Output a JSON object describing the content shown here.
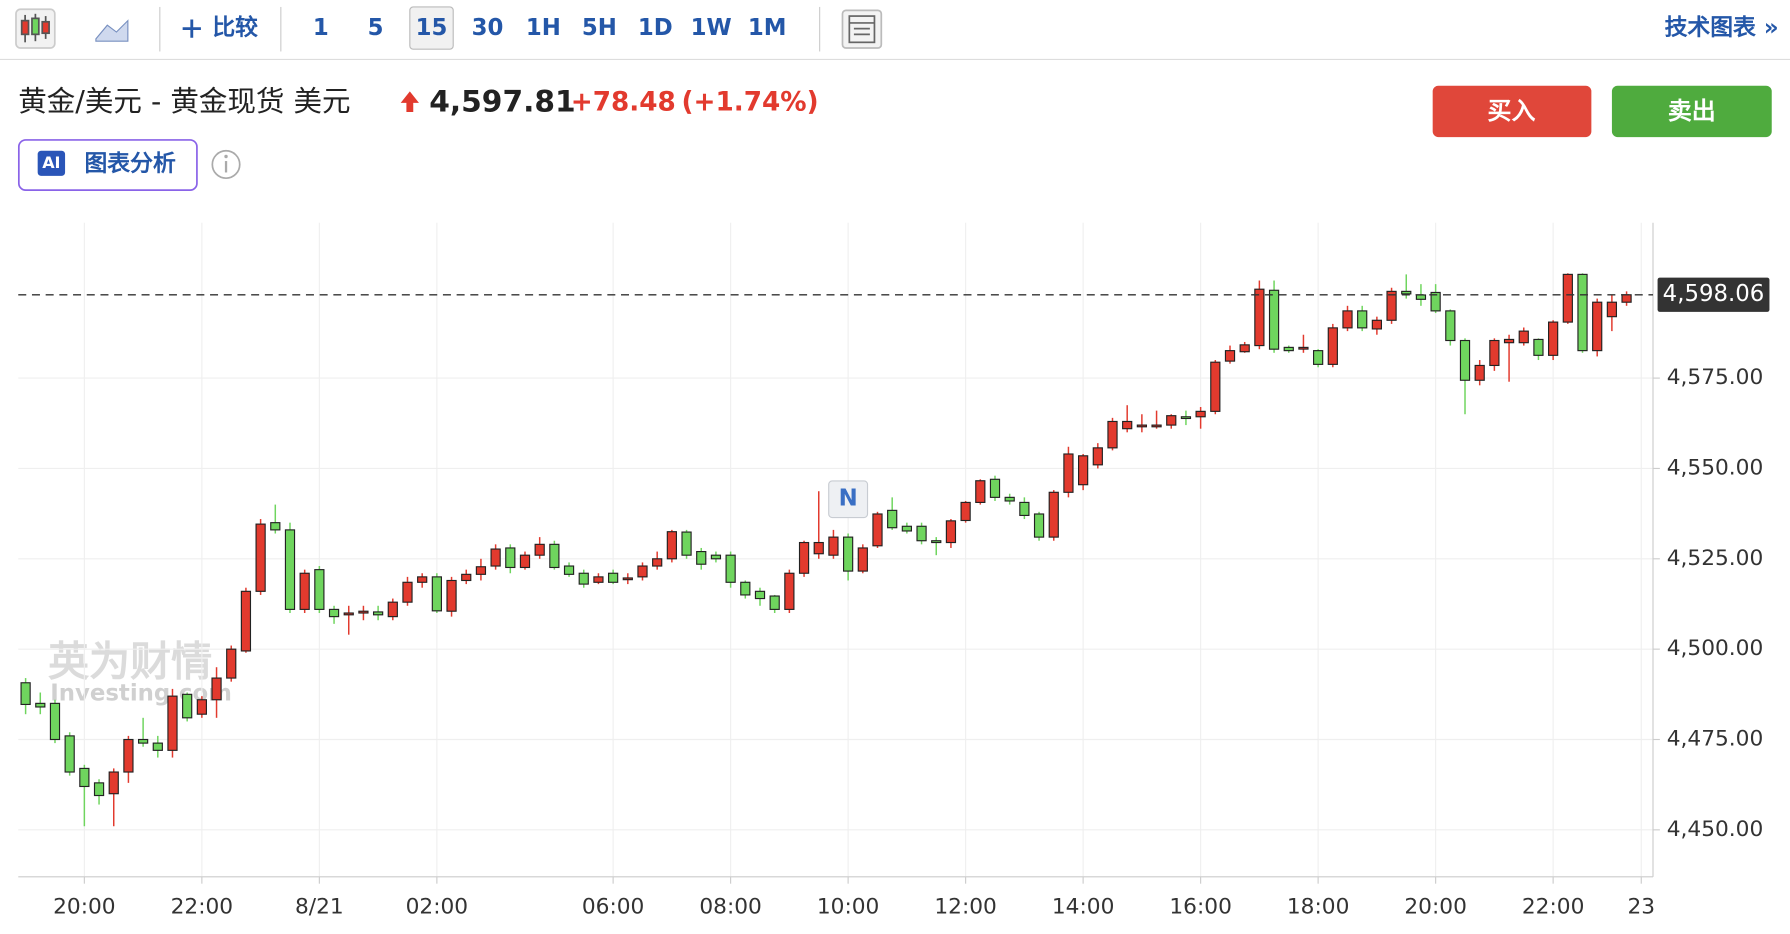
{
  "toolbar": {
    "compare": "比较",
    "intervals": [
      "1",
      "5",
      "15",
      "30",
      "1H",
      "5H",
      "1D",
      "1W",
      "1M"
    ],
    "technical_chart": "技术图表 »"
  },
  "header": {
    "instrument": "黄金/美元 - 黄金现货 美元",
    "price": "4,597.81",
    "change": "+78.48",
    "change_pct": "(+1.74%)",
    "buy": "买入",
    "sell": "卖出",
    "ai_badge": "AI",
    "ai_label": "图表分析"
  },
  "watermark": {
    "cn": "英为财情",
    "en": "Investing.com"
  },
  "chart_data": {
    "type": "candlestick",
    "open": [
      4490.7,
      4485,
      4485,
      4476,
      4467,
      4463,
      4460,
      4466,
      4475,
      4474,
      4472,
      4487.5,
      4482,
      4486,
      4492,
      4499.5,
      4516,
      4535,
      4533,
      4511,
      4522,
      4511,
      4509.5,
      4510,
      4510.3,
      4509,
      4513,
      4518.5,
      4520,
      4510.5,
      4519,
      4520.7,
      4523,
      4528,
      4522.6,
      4526,
      4529,
      4523,
      4521,
      4518.5,
      4521,
      4519.5,
      4520,
      4523,
      4525,
      4532.4,
      4527,
      4526,
      4526,
      4518.5,
      4516,
      4514.7,
      4511,
      4521,
      4526.4,
      4526,
      4531,
      4521.6,
      4528.6,
      4538.4,
      4534,
      4534,
      4530,
      4529.5,
      4535.6,
      4540.6,
      4547,
      4542,
      4540.6,
      4537.4,
      4531,
      4543.4,
      4545.5,
      4551,
      4555.7,
      4561,
      4562,
      4562,
      4562,
      4564.3,
      4564.3,
      4565.8,
      4579.7,
      4582.3,
      4584,
      4599.3,
      4583.5,
      4583.5,
      4582.6,
      4578.8,
      4588.9,
      4593.6,
      4588.6,
      4591,
      4599,
      4598,
      4598.7,
      4593.6,
      4585.4,
      4574.4,
      4578.5,
      4584.8,
      4584.8,
      4585.7,
      4581.3,
      4590.5,
      4603.7,
      4582.6,
      4592,
      4596
    ],
    "high": [
      4492,
      4488,
      4486,
      4477,
      4468,
      4464,
      4467,
      4476,
      4481,
      4476,
      4489,
      4488,
      4487,
      4495,
      4501,
      4517,
      4536,
      4540,
      4535,
      4522,
      4523,
      4512,
      4512,
      4512,
      4512,
      4514,
      4520,
      4521,
      4521,
      4520,
      4522,
      4525,
      4529,
      4529,
      4527,
      4531,
      4530,
      4524,
      4522,
      4521,
      4522,
      4521,
      4524,
      4527,
      4533,
      4533,
      4528,
      4527,
      4527,
      4519,
      4517,
      4515,
      4522,
      4530,
      4543.7,
      4533,
      4532,
      4529,
      4538,
      4542,
      4535,
      4535,
      4531,
      4536,
      4541,
      4547,
      4548,
      4543,
      4542,
      4538,
      4544,
      4556,
      4554,
      4557,
      4564,
      4567.5,
      4565,
      4566,
      4565,
      4566,
      4567,
      4580,
      4584,
      4585,
      4602,
      4602,
      4584,
      4587,
      4583,
      4590,
      4595,
      4595,
      4592,
      4600,
      4603.7,
      4601,
      4601,
      4594,
      4586,
      4580,
      4586,
      4587,
      4589,
      4586,
      4591,
      4604,
      4604,
      4597,
      4598,
      4599
    ],
    "low": [
      4482,
      4482,
      4474,
      4465,
      4451,
      4457,
      4451,
      4463,
      4473,
      4470,
      4470,
      4480,
      4481,
      4481,
      4491,
      4499,
      4515,
      4532,
      4510,
      4510,
      4510,
      4507,
      4504,
      4508,
      4508,
      4508,
      4512,
      4517,
      4510,
      4509,
      4518,
      4519,
      4522,
      4521,
      4522,
      4525,
      4522,
      4520,
      4517,
      4518,
      4518,
      4518,
      4519,
      4522,
      4524,
      4525,
      4522,
      4524,
      4517,
      4514,
      4512,
      4510,
      4510,
      4520,
      4525,
      4525,
      4519,
      4521,
      4528,
      4533,
      4532,
      4529,
      4526,
      4528,
      4535,
      4540,
      4541,
      4540,
      4536,
      4530,
      4530,
      4542,
      4544,
      4550,
      4555,
      4560,
      4560,
      4561,
      4561,
      4562,
      4561,
      4565,
      4579,
      4582,
      4583,
      4582,
      4582,
      4582,
      4578,
      4578,
      4588,
      4588,
      4587,
      4590,
      4597,
      4595,
      4593,
      4584,
      4565,
      4573,
      4577,
      4574,
      4584,
      4580,
      4580,
      4590,
      4582,
      4581,
      4588,
      4595
    ],
    "close": [
      4484.7,
      4484,
      4475,
      4466,
      4462,
      4459.5,
      4466,
      4475,
      4474,
      4472,
      4487,
      4481,
      4486,
      4492,
      4500,
      4516,
      4534.6,
      4533,
      4511,
      4521,
      4511,
      4509,
      4510,
      4510.5,
      4509.5,
      4513,
      4518.5,
      4520,
      4510.6,
      4519,
      4520.7,
      4522.8,
      4527.7,
      4522.6,
      4526,
      4529,
      4522.6,
      4520.7,
      4518,
      4520,
      4518.5,
      4519.7,
      4523,
      4525,
      4532.5,
      4526,
      4523.5,
      4525,
      4518.5,
      4515,
      4514,
      4511,
      4521,
      4529.5,
      4529.5,
      4531,
      4521.6,
      4528,
      4537.4,
      4533.6,
      4532.7,
      4530,
      4529.5,
      4535.5,
      4540.6,
      4546.6,
      4542,
      4541,
      4537,
      4531,
      4543.4,
      4554,
      4553.5,
      4555.7,
      4563,
      4563,
      4562,
      4562,
      4564.6,
      4564,
      4565.8,
      4579.4,
      4582.6,
      4584.2,
      4599.6,
      4583,
      4582.6,
      4583.5,
      4578.8,
      4588.9,
      4593.6,
      4588.9,
      4591,
      4599,
      4598.3,
      4596.8,
      4593.6,
      4585.4,
      4574.4,
      4578.5,
      4585.4,
      4585.7,
      4588,
      4581.3,
      4590.5,
      4603.7,
      4582.6,
      4596,
      4596,
      4598.06
    ],
    "up_color": "#e23a2e",
    "down_color": "#6fd55e",
    "xlim": [
      -0.5,
      110.8
    ],
    "xticks": [
      {
        "value": 4,
        "label": "20:00"
      },
      {
        "value": 12,
        "label": "22:00"
      },
      {
        "value": 20,
        "label": "8/21"
      },
      {
        "value": 28,
        "label": "02:00"
      },
      {
        "value": 40,
        "label": "06:00"
      },
      {
        "value": 48,
        "label": "08:00"
      },
      {
        "value": 56,
        "label": "10:00"
      },
      {
        "value": 64,
        "label": "12:00"
      },
      {
        "value": 72,
        "label": "14:00"
      },
      {
        "value": 80,
        "label": "16:00"
      },
      {
        "value": 88,
        "label": "18:00"
      },
      {
        "value": 96,
        "label": "20:00"
      },
      {
        "value": 104,
        "label": "22:00"
      },
      {
        "value": 110,
        "label": "23"
      }
    ],
    "ylim": [
      4437,
      4618
    ],
    "yticks": [
      {
        "value": 4450,
        "label": "4,450.00"
      },
      {
        "value": 4475,
        "label": "4,475.00"
      },
      {
        "value": 4500,
        "label": "4,500.00"
      },
      {
        "value": 4525,
        "label": "4,525.00"
      },
      {
        "value": 4550,
        "label": "4,550.00"
      },
      {
        "value": 4575,
        "label": "4,575.00"
      }
    ],
    "last_price": {
      "value": 4598.06,
      "label": "4,598.06"
    },
    "annotations": [
      {
        "text": "N",
        "x": 56
      }
    ],
    "grid": true
  }
}
